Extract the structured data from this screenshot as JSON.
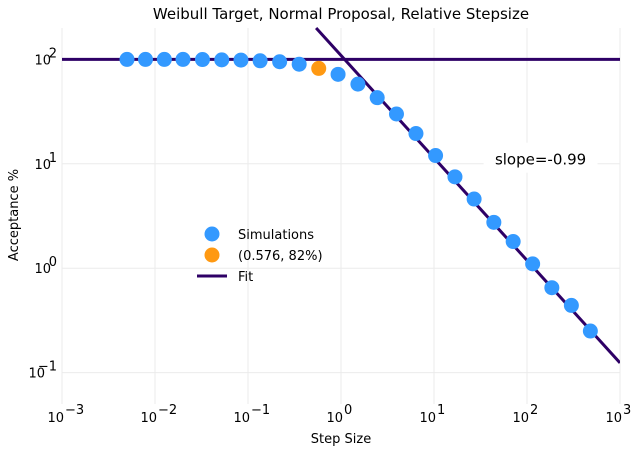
{
  "chart_data": {
    "type": "scatter",
    "title": "Weibull Target, Normal Proposal, Relative Stepsize",
    "xlabel": "Step Size",
    "ylabel": "Acceptance %",
    "xscale": "log",
    "yscale": "log",
    "xlim": [
      0.001,
      1000
    ],
    "ylim": [
      0.05,
      200
    ],
    "x_ticks": [
      {
        "value": 0.001,
        "base": "10",
        "exp": "−3"
      },
      {
        "value": 0.01,
        "base": "10",
        "exp": "−2"
      },
      {
        "value": 0.1,
        "base": "10",
        "exp": "−1"
      },
      {
        "value": 1,
        "base": "10",
        "exp": "0"
      },
      {
        "value": 10,
        "base": "10",
        "exp": "1"
      },
      {
        "value": 100,
        "base": "10",
        "exp": "2"
      },
      {
        "value": 1000,
        "base": "10",
        "exp": "3"
      }
    ],
    "y_ticks": [
      {
        "value": 0.1,
        "base": "10",
        "exp": "−1"
      },
      {
        "value": 1,
        "base": "10",
        "exp": "0"
      },
      {
        "value": 10,
        "base": "10",
        "exp": "1"
      },
      {
        "value": 100,
        "base": "10",
        "exp": "2"
      }
    ],
    "grid": true,
    "legend_position": "center-left",
    "series": [
      {
        "name": "Simulations",
        "kind": "scatter",
        "color": "#3399ff",
        "points": [
          {
            "x": 0.005,
            "y": 100
          },
          {
            "x": 0.0079,
            "y": 100
          },
          {
            "x": 0.0126,
            "y": 100
          },
          {
            "x": 0.02,
            "y": 100
          },
          {
            "x": 0.0324,
            "y": 99.8
          },
          {
            "x": 0.0522,
            "y": 99
          },
          {
            "x": 0.084,
            "y": 98.5
          },
          {
            "x": 0.135,
            "y": 97
          },
          {
            "x": 0.219,
            "y": 95
          },
          {
            "x": 0.355,
            "y": 90
          },
          {
            "x": 0.93,
            "y": 72
          },
          {
            "x": 1.52,
            "y": 58
          },
          {
            "x": 2.45,
            "y": 43
          },
          {
            "x": 3.95,
            "y": 30
          },
          {
            "x": 6.4,
            "y": 19.5
          },
          {
            "x": 10.4,
            "y": 12
          },
          {
            "x": 16.8,
            "y": 7.5
          },
          {
            "x": 27,
            "y": 4.6
          },
          {
            "x": 44,
            "y": 2.75
          },
          {
            "x": 71,
            "y": 1.8
          },
          {
            "x": 115,
            "y": 1.1
          },
          {
            "x": 185,
            "y": 0.65
          },
          {
            "x": 300,
            "y": 0.44
          },
          {
            "x": 480,
            "y": 0.25
          }
        ]
      },
      {
        "name": "(0.576, 82%)",
        "kind": "scatter",
        "color": "#ff9912",
        "points": [
          {
            "x": 0.576,
            "y": 82
          }
        ]
      },
      {
        "name": "Fit",
        "kind": "line",
        "color": "#2e0066",
        "segments": [
          [
            {
              "x": 0.001,
              "y": 100
            },
            {
              "x": 1000,
              "y": 100
            }
          ],
          [
            {
              "x": 0.54,
              "y": 200
            },
            {
              "x": 1000,
              "y": 0.124
            }
          ]
        ]
      }
    ],
    "annotations": [
      {
        "text": "slope=-0.99",
        "x": 140,
        "y": 9.8
      }
    ]
  }
}
